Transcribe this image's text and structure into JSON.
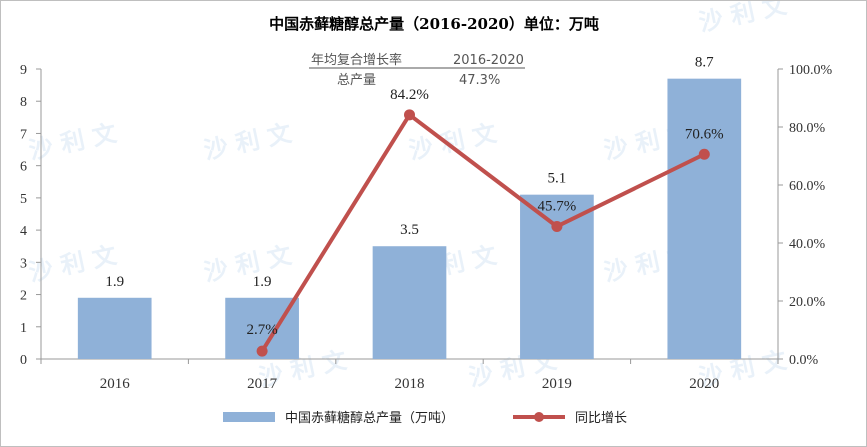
{
  "colors": {
    "bar": "#8fb1d8",
    "line": "#c0504d",
    "axis": "#999999"
  },
  "watermark": "沙 利 文",
  "note": {
    "label1": "年均复合增长率",
    "label2": "2016-2020",
    "label3": "总产量",
    "value": "47.3%"
  },
  "chart_data": {
    "type": "bar",
    "title": "中国赤藓糖醇总产量（2016-2020）单位：万吨",
    "categories": [
      "2016",
      "2017",
      "2018",
      "2019",
      "2020"
    ],
    "series": [
      {
        "name": "中国赤藓糖醇总产量（万吨）",
        "type": "bar",
        "axis": "left",
        "values": [
          1.9,
          1.9,
          3.5,
          5.1,
          8.7
        ]
      },
      {
        "name": "同比增长",
        "type": "line",
        "axis": "right",
        "values": [
          null,
          2.7,
          84.2,
          45.7,
          70.6
        ],
        "labels": [
          "",
          "2.7%",
          "84.2%",
          "45.7%",
          "70.6%"
        ]
      }
    ],
    "y_left": {
      "min": 0,
      "max": 9,
      "ticks": [
        "0",
        "1",
        "2",
        "3",
        "4",
        "5",
        "6",
        "7",
        "8",
        "9"
      ]
    },
    "y_right": {
      "min": 0,
      "max": 100,
      "ticks": [
        "0.0%",
        "20.0%",
        "40.0%",
        "60.0%",
        "80.0%",
        "100.0%"
      ]
    },
    "grid": false,
    "legend": "bottom"
  }
}
